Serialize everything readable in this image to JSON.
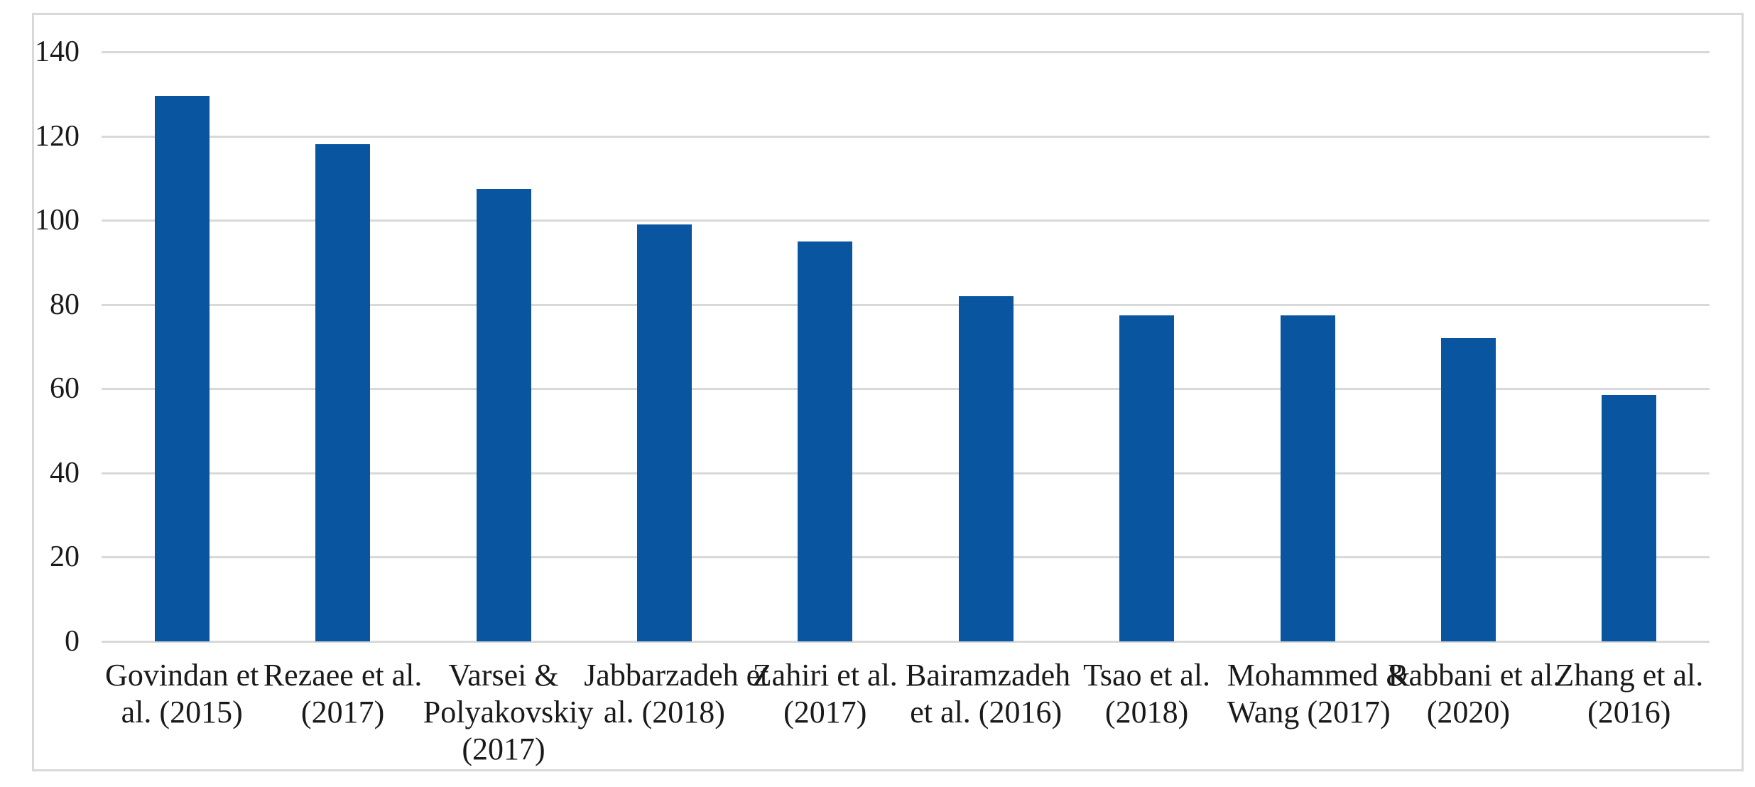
{
  "chart_data": {
    "type": "bar",
    "title": "",
    "xlabel": "",
    "ylabel": "",
    "categories": [
      "Govindan et al. (2015)",
      "Rezaee et al. (2017)",
      "Varsei & Polyakovskiy (2017)",
      "Jabbarzadeh et al. (2018)",
      "Zahiri et al. (2017)",
      "Bairamzadeh et al. (2016)",
      "Tsao et al. (2018)",
      "Mohammed & Wang (2017)",
      "Rabbani et al. (2020)",
      "Zhang et al. (2016)"
    ],
    "category_label_lines": [
      [
        "Govindan et",
        "al. (2015)"
      ],
      [
        "Rezaee et al.",
        "(2017)"
      ],
      [
        "Varsei &",
        "Polyakovskiy",
        "(2017)"
      ],
      [
        "Jabbarzadeh et",
        "al. (2018)"
      ],
      [
        "Zahiri et al.",
        "(2017)"
      ],
      [
        "Bairamzadeh",
        "et al. (2016)"
      ],
      [
        "Tsao et al.",
        "(2018)"
      ],
      [
        "Mohammed &",
        "Wang (2017)"
      ],
      [
        "Rabbani et al.",
        "(2020)"
      ],
      [
        "Zhang et al.",
        "(2016)"
      ]
    ],
    "values": [
      129.5,
      118,
      107.5,
      99,
      95,
      82,
      77.5,
      77.5,
      72,
      58.5
    ],
    "ylim": [
      0,
      140
    ],
    "yticks": [
      0,
      20,
      40,
      60,
      80,
      100,
      120,
      140
    ],
    "grid": true,
    "legend": false,
    "colors": {
      "bar": "#0a55a0",
      "gridline": "#d9d9d9",
      "frame_border": "#d9d9d9",
      "text": "#1a1a1a",
      "background": "#ffffff"
    }
  }
}
